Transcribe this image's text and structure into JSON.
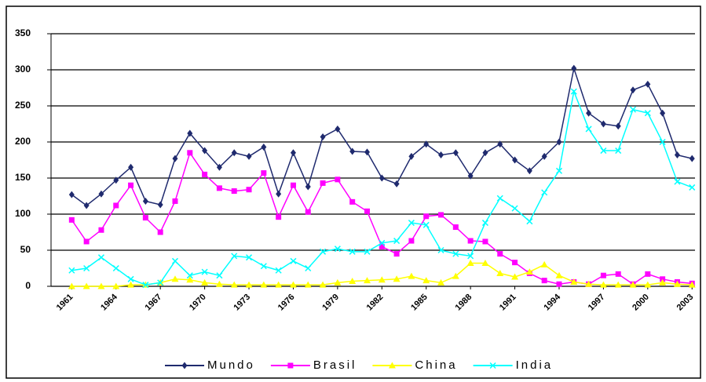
{
  "chart_data": {
    "type": "line",
    "x": [
      1961,
      1962,
      1963,
      1964,
      1965,
      1966,
      1967,
      1968,
      1969,
      1970,
      1971,
      1972,
      1973,
      1974,
      1975,
      1976,
      1977,
      1978,
      1979,
      1980,
      1981,
      1982,
      1983,
      1984,
      1985,
      1986,
      1987,
      1988,
      1989,
      1990,
      1991,
      1992,
      1993,
      1994,
      1995,
      1996,
      1997,
      1998,
      1999,
      2000,
      2001,
      2002,
      2003
    ],
    "series": [
      {
        "name": "Mundo",
        "color": "#1f2a6e",
        "marker": "diamond",
        "values": [
          127,
          112,
          128,
          147,
          165,
          118,
          113,
          177,
          212,
          188,
          165,
          185,
          180,
          193,
          128,
          185,
          138,
          207,
          218,
          187,
          186,
          150,
          142,
          180,
          197,
          182,
          185,
          153,
          185,
          197,
          175,
          160,
          180,
          200,
          302,
          240,
          225,
          222,
          272,
          280,
          240,
          182,
          177
        ]
      },
      {
        "name": "Brasil",
        "color": "#ff00ff",
        "marker": "square",
        "values": [
          92,
          62,
          78,
          112,
          140,
          95,
          75,
          118,
          185,
          155,
          136,
          132,
          134,
          157,
          96,
          140,
          103,
          143,
          148,
          117,
          104,
          55,
          45,
          63,
          97,
          99,
          82,
          63,
          62,
          45,
          33,
          18,
          8,
          3,
          6,
          3,
          15,
          17,
          3,
          17,
          10,
          6,
          4
        ]
      },
      {
        "name": "China",
        "color": "#ffff00",
        "marker": "triangle",
        "values": [
          0,
          0,
          0,
          0,
          2,
          2,
          5,
          10,
          9,
          5,
          3,
          2,
          2,
          2,
          2,
          2,
          2,
          2,
          5,
          7,
          8,
          9,
          10,
          14,
          8,
          5,
          14,
          32,
          32,
          18,
          13,
          20,
          30,
          15,
          6,
          3,
          2,
          2,
          2,
          2,
          5,
          3,
          2
        ]
      },
      {
        "name": "India",
        "color": "#00ffff",
        "marker": "cross",
        "values": [
          22,
          25,
          40,
          25,
          10,
          2,
          5,
          35,
          15,
          20,
          15,
          42,
          40,
          28,
          22,
          35,
          25,
          48,
          52,
          48,
          48,
          60,
          63,
          88,
          85,
          50,
          45,
          42,
          88,
          122,
          108,
          90,
          130,
          160,
          270,
          218,
          188,
          188,
          245,
          240,
          200,
          145,
          137
        ]
      }
    ],
    "xlim": [
      1959.6,
      2003.2
    ],
    "xticks": [
      1961,
      1964,
      1967,
      1970,
      1973,
      1976,
      1979,
      1982,
      1985,
      1988,
      1991,
      1994,
      1997,
      2000,
      2003
    ],
    "ylim": [
      0,
      350
    ],
    "yticks": [
      0,
      50,
      100,
      150,
      200,
      250,
      300,
      350
    ],
    "grid": true,
    "legend": "bottom"
  }
}
